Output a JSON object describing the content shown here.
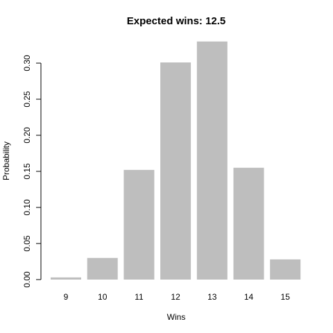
{
  "chart_data": {
    "type": "bar",
    "title": "Expected wins:  12.5",
    "xlabel": "Wins",
    "ylabel": "Probability",
    "categories": [
      "9",
      "10",
      "11",
      "12",
      "13",
      "14",
      "15"
    ],
    "values": [
      0.003,
      0.03,
      0.152,
      0.301,
      0.33,
      0.155,
      0.028
    ],
    "ylim": [
      0,
      0.33
    ],
    "yticks": [
      "0.00",
      "0.05",
      "0.10",
      "0.15",
      "0.20",
      "0.25",
      "0.30"
    ],
    "ytick_values": [
      0,
      0.05,
      0.1,
      0.15,
      0.2,
      0.25,
      0.3
    ],
    "grid": false,
    "colors": {
      "bar": "#bebebe",
      "axis": "#000000"
    }
  }
}
